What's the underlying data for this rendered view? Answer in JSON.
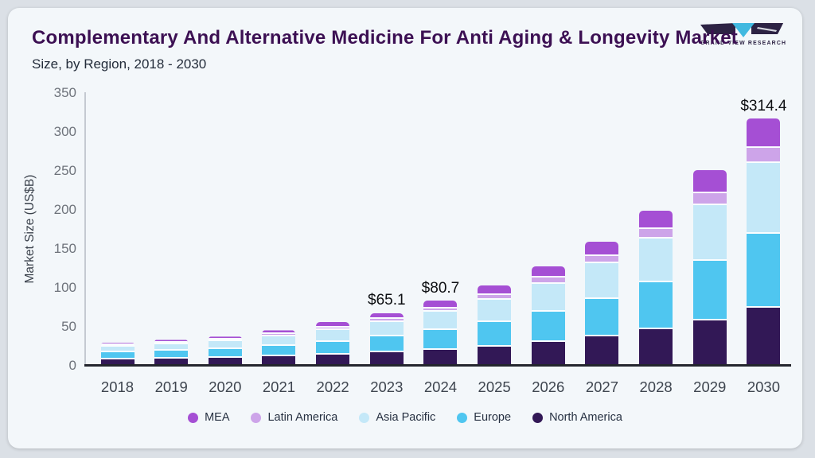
{
  "header": {
    "title": "Complementary And Alternative Medicine For Anti Aging & Longevity Market",
    "subtitle": "Size, by Region, 2018 - 2030",
    "logo_text": "GRAND VIEW RESEARCH"
  },
  "colors": {
    "card_bg": "#f3f7fa",
    "outer_bg": "#dbe0e6",
    "title": "#3c1053",
    "logo_dark": "#2d2344",
    "logo_cyan": "#41b9e0",
    "axis_line": "#c5cad1",
    "baseline": "#23252d"
  },
  "chart_data": {
    "type": "bar",
    "stacked": true,
    "title": "Complementary And Alternative Medicine For Anti Aging & Longevity Market Size, by Region, 2018 - 2030",
    "xlabel": "",
    "ylabel": "Market Size (US$B)",
    "ylim": [
      0,
      350
    ],
    "yticks": [
      0,
      50,
      100,
      150,
      200,
      250,
      300,
      350
    ],
    "grid": false,
    "legend_position": "bottom",
    "categories": [
      "2018",
      "2019",
      "2020",
      "2021",
      "2022",
      "2023",
      "2024",
      "2025",
      "2026",
      "2027",
      "2028",
      "2029",
      "2030"
    ],
    "series": [
      {
        "name": "North America",
        "color": "#321856",
        "values": [
          6.0,
          6.9,
          7.9,
          9.7,
          11.6,
          14.5,
          18.0,
          22.4,
          28.0,
          35.0,
          44.0,
          56.0,
          72.0
        ]
      },
      {
        "name": "Europe",
        "color": "#4fc6f0",
        "values": [
          8.5,
          9.7,
          11.1,
          13.6,
          16.4,
          20.3,
          25.0,
          31.0,
          38.6,
          48.2,
          60.2,
          75.8,
          94.9
        ]
      },
      {
        "name": "Asia Pacific",
        "color": "#c4e8f8",
        "values": [
          7.5,
          8.7,
          10.0,
          12.4,
          15.6,
          18.9,
          23.4,
          29.2,
          36.4,
          45.6,
          56.9,
          71.9,
          90.6
        ]
      },
      {
        "name": "Latin America",
        "color": "#cda4e9",
        "values": [
          1.6,
          1.8,
          2.1,
          2.6,
          3.3,
          3.9,
          4.9,
          6.1,
          7.6,
          9.5,
          11.9,
          15.0,
          19.2
        ]
      },
      {
        "name": "MEA",
        "color": "#a54fd4",
        "values": [
          2.9,
          3.4,
          3.9,
          4.7,
          6.4,
          7.5,
          9.4,
          11.8,
          14.9,
          18.7,
          23.5,
          29.8,
          37.7
        ]
      }
    ],
    "totals": [
      26.5,
      30.5,
      35.0,
      43.0,
      53.3,
      65.1,
      80.7,
      100.5,
      125.5,
      157.0,
      196.5,
      248.5,
      314.4
    ],
    "annotations": [
      {
        "category": "2023",
        "label": "$65.1"
      },
      {
        "category": "2024",
        "label": "$80.7"
      },
      {
        "category": "2030",
        "label": "$314.4"
      }
    ],
    "legend_order": [
      "MEA",
      "Latin America",
      "Asia Pacific",
      "Europe",
      "North America"
    ]
  }
}
